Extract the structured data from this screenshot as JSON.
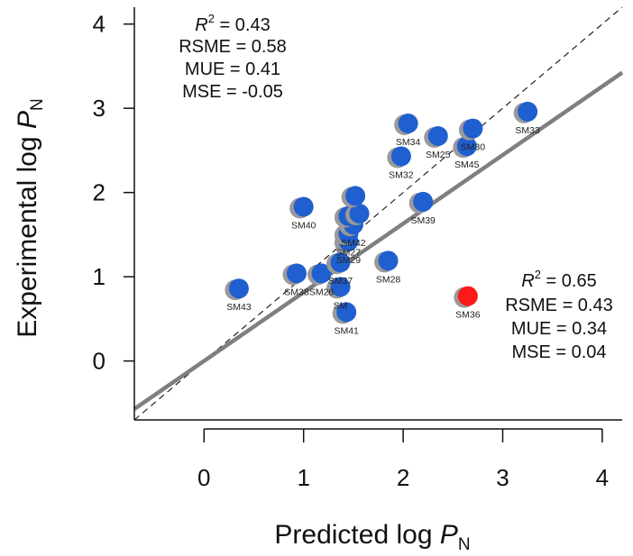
{
  "chart_data": {
    "type": "scatter",
    "xlabel": {
      "main": "Predicted log ",
      "var": "P",
      "sub": "N"
    },
    "ylabel": {
      "main": "Experimental log ",
      "var": "P",
      "sub": "N"
    },
    "xlim": [
      -0.7,
      4.2
    ],
    "ylim": [
      -0.7,
      4.2
    ],
    "x_ticks": [
      0,
      1,
      2,
      3,
      4
    ],
    "y_ticks": [
      0,
      1,
      2,
      3,
      4
    ],
    "grid": false,
    "identity_line": true,
    "regression_line": {
      "intercept": 0.0,
      "slope": 0.815
    },
    "colors": {
      "point": "#1f5fcf",
      "outlier": "#ff1a1a",
      "shadow": "#9a9a9a",
      "regression": "#7f7f7f"
    },
    "points": [
      {
        "label": "SM43",
        "x": 0.35,
        "y": 0.86
      },
      {
        "label": "SM38",
        "x": 0.93,
        "y": 1.04
      },
      {
        "label": "SM26",
        "x": 1.18,
        "y": 1.04
      },
      {
        "label": "SM40",
        "x": 1.0,
        "y": 1.83
      },
      {
        "label": "SM41",
        "x": 1.43,
        "y": 0.58
      },
      {
        "label": "SM",
        "x": 1.37,
        "y": 0.88
      },
      {
        "label": "SM37",
        "x": 1.37,
        "y": 1.17
      },
      {
        "label": "SM29",
        "x": 1.45,
        "y": 1.42
      },
      {
        "label": "SM27",
        "x": 1.45,
        "y": 1.51
      },
      {
        "label": "SM42",
        "x": 1.5,
        "y": 1.62
      },
      {
        "label": "",
        "x": 1.45,
        "y": 1.72
      },
      {
        "label": "",
        "x": 1.56,
        "y": 1.75
      },
      {
        "label": "",
        "x": 1.52,
        "y": 1.96
      },
      {
        "label": "SM28",
        "x": 1.85,
        "y": 1.19
      },
      {
        "label": "SM32",
        "x": 1.98,
        "y": 2.43
      },
      {
        "label": "SM39",
        "x": 2.2,
        "y": 1.89
      },
      {
        "label": "SM34",
        "x": 2.05,
        "y": 2.82
      },
      {
        "label": "SM25",
        "x": 2.35,
        "y": 2.67
      },
      {
        "label": "SM45",
        "x": 2.64,
        "y": 2.55
      },
      {
        "label": "SM30",
        "x": 2.7,
        "y": 2.76
      },
      {
        "label": "SM33",
        "x": 3.25,
        "y": 2.96
      },
      {
        "label": "SM36",
        "x": 2.65,
        "y": 0.77,
        "outlier": true
      }
    ],
    "stats_all": {
      "r2": {
        "var": "R",
        "sup": "2",
        "rest": " = 0.43"
      },
      "lines": [
        "RSME = 0.58",
        "MUE = 0.41",
        "MSE = -0.05"
      ]
    },
    "stats_outlier": {
      "r2": {
        "var": "R",
        "sup": "2",
        "rest": " = 0.65"
      },
      "lines": [
        "RSME = 0.43",
        "MUE = 0.34",
        "MSE = 0.04"
      ]
    }
  }
}
